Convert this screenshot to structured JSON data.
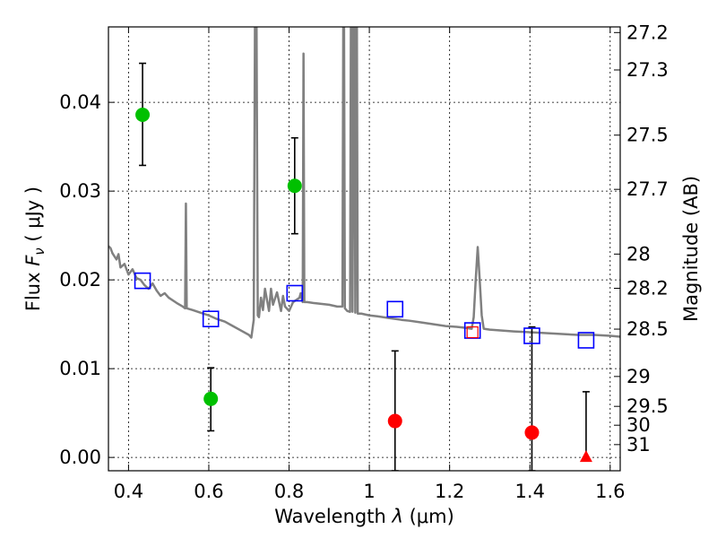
{
  "chart_data": {
    "type": "scatter",
    "xlabel_prefix": "Wavelength  ",
    "xlabel_symbol": "λ",
    "xlabel_unit": " (μm)",
    "ylabel_prefix": "Flux  ",
    "ylabel_symbol": "F",
    "ylabel_sub": "ν",
    "ylabel_unit": "  ( μJy )",
    "y2label": "Magnitude (AB)",
    "xlim": [
      0.35,
      1.625
    ],
    "ylim": [
      -0.0015,
      0.0485
    ],
    "grid": true,
    "xticks": [
      0.4,
      0.6,
      0.8,
      1.0,
      1.2,
      1.4,
      1.6
    ],
    "xtick_labels": [
      "0.4",
      "0.6",
      "0.8",
      "1",
      "1.2",
      "1.4",
      "1.6"
    ],
    "yticks": [
      0.0,
      0.01,
      0.02,
      0.03,
      0.04
    ],
    "ytick_labels": [
      "0.00",
      "0.01",
      "0.02",
      "0.03",
      "0.04"
    ],
    "magnitude_ticks": [
      27.2,
      27.3,
      27.5,
      27.7,
      28,
      28.2,
      28.5,
      29,
      29.5,
      30,
      31
    ],
    "magnitude_tick_labels": [
      "27.2",
      "27.3",
      "27.5",
      "27.7",
      "28",
      "28.2",
      "28.5",
      "29",
      "29.5",
      "30",
      "31"
    ],
    "detections": [
      {
        "x": 0.435,
        "y": 0.0386,
        "err_low": 0.0329,
        "err_high": 0.0444,
        "color": "#00c000"
      },
      {
        "x": 0.605,
        "y": 0.0066,
        "err_low": 0.003,
        "err_high": 0.0101,
        "color": "#00c000"
      },
      {
        "x": 0.814,
        "y": 0.0306,
        "err_low": 0.0252,
        "err_high": 0.036,
        "color": "#00c000"
      }
    ],
    "nondetections": [
      {
        "x": 1.064,
        "y": 0.0041,
        "err_low": -0.0015,
        "err_high": 0.012,
        "color": "#ff0000"
      },
      {
        "x": 1.405,
        "y": 0.0028,
        "err_low": -0.0015,
        "err_high": 0.0147,
        "color": "#ff0000"
      }
    ],
    "upper_limits": [
      {
        "x": 1.54,
        "y": 0.0,
        "err_high": 0.0074,
        "color": "#ff0000"
      }
    ],
    "model_photometry": {
      "color": "#0000ff",
      "points": [
        {
          "x": 0.435,
          "y": 0.0199
        },
        {
          "x": 0.605,
          "y": 0.0156
        },
        {
          "x": 0.814,
          "y": 0.0185
        },
        {
          "x": 1.064,
          "y": 0.0167
        },
        {
          "x": 1.257,
          "y": 0.0143
        },
        {
          "x": 1.405,
          "y": 0.0137
        },
        {
          "x": 1.54,
          "y": 0.0132
        }
      ]
    },
    "extra_marker": {
      "x": 1.257,
      "y": 0.0141,
      "color": "#ff0000"
    },
    "sed_model": {
      "color": "#808080",
      "points": [
        [
          0.35,
          0.0238
        ],
        [
          0.355,
          0.0236
        ],
        [
          0.36,
          0.023
        ],
        [
          0.37,
          0.0223
        ],
        [
          0.375,
          0.0229
        ],
        [
          0.38,
          0.0214
        ],
        [
          0.39,
          0.0218
        ],
        [
          0.4,
          0.0206
        ],
        [
          0.41,
          0.0212
        ],
        [
          0.42,
          0.0202
        ],
        [
          0.43,
          0.02
        ],
        [
          0.44,
          0.0194
        ],
        [
          0.45,
          0.019
        ],
        [
          0.46,
          0.0196
        ],
        [
          0.47,
          0.0188
        ],
        [
          0.48,
          0.0182
        ],
        [
          0.49,
          0.0185
        ],
        [
          0.5,
          0.018
        ],
        [
          0.52,
          0.0174
        ],
        [
          0.535,
          0.017
        ],
        [
          0.541,
          0.0168
        ],
        [
          0.543,
          0.0286
        ],
        [
          0.545,
          0.0168
        ],
        [
          0.56,
          0.0166
        ],
        [
          0.58,
          0.0163
        ],
        [
          0.6,
          0.016
        ],
        [
          0.62,
          0.0156
        ],
        [
          0.64,
          0.0153
        ],
        [
          0.66,
          0.0148
        ],
        [
          0.68,
          0.0143
        ],
        [
          0.7,
          0.0138
        ],
        [
          0.706,
          0.0135
        ],
        [
          0.712,
          0.0155
        ],
        [
          0.715,
          0.0485
        ],
        [
          0.719,
          0.0485
        ],
        [
          0.722,
          0.016
        ],
        [
          0.725,
          0.0158
        ],
        [
          0.73,
          0.018
        ],
        [
          0.735,
          0.0166
        ],
        [
          0.74,
          0.019
        ],
        [
          0.75,
          0.0165
        ],
        [
          0.755,
          0.019
        ],
        [
          0.76,
          0.0172
        ],
        [
          0.77,
          0.0186
        ],
        [
          0.78,
          0.0165
        ],
        [
          0.785,
          0.0182
        ],
        [
          0.79,
          0.017
        ],
        [
          0.8,
          0.0165
        ],
        [
          0.81,
          0.0175
        ],
        [
          0.82,
          0.0178
        ],
        [
          0.826,
          0.018
        ],
        [
          0.829,
          0.0185
        ],
        [
          0.831,
          0.018
        ],
        [
          0.834,
          0.0175
        ],
        [
          0.836,
          0.0455
        ],
        [
          0.838,
          0.0175
        ],
        [
          0.845,
          0.0175
        ],
        [
          0.86,
          0.0174
        ],
        [
          0.88,
          0.0173
        ],
        [
          0.9,
          0.0172
        ],
        [
          0.92,
          0.017
        ],
        [
          0.933,
          0.017
        ],
        [
          0.935,
          0.0485
        ],
        [
          0.937,
          0.0485
        ],
        [
          0.939,
          0.0168
        ],
        [
          0.945,
          0.0165
        ],
        [
          0.952,
          0.0164
        ],
        [
          0.954,
          0.0485
        ],
        [
          0.956,
          0.0485
        ],
        [
          0.958,
          0.0164
        ],
        [
          0.961,
          0.0485
        ],
        [
          0.963,
          0.0485
        ],
        [
          0.965,
          0.0163
        ],
        [
          0.967,
          0.0485
        ],
        [
          0.969,
          0.0485
        ],
        [
          0.971,
          0.0162
        ],
        [
          0.98,
          0.0162
        ],
        [
          1.0,
          0.016
        ],
        [
          1.02,
          0.0159
        ],
        [
          1.05,
          0.0157
        ],
        [
          1.08,
          0.0155
        ],
        [
          1.1,
          0.0154
        ],
        [
          1.13,
          0.0152
        ],
        [
          1.16,
          0.015
        ],
        [
          1.19,
          0.0148
        ],
        [
          1.22,
          0.0147
        ],
        [
          1.24,
          0.0146
        ],
        [
          1.255,
          0.0145
        ],
        [
          1.26,
          0.0158
        ],
        [
          1.265,
          0.02
        ],
        [
          1.27,
          0.0237
        ],
        [
          1.275,
          0.02
        ],
        [
          1.28,
          0.016
        ],
        [
          1.285,
          0.0145
        ],
        [
          1.3,
          0.0144
        ],
        [
          1.33,
          0.0143
        ],
        [
          1.36,
          0.0142
        ],
        [
          1.4,
          0.0141
        ],
        [
          1.44,
          0.014
        ],
        [
          1.48,
          0.0139
        ],
        [
          1.52,
          0.0138
        ],
        [
          1.56,
          0.0138
        ],
        [
          1.6,
          0.0137
        ],
        [
          1.625,
          0.0136
        ]
      ]
    }
  }
}
